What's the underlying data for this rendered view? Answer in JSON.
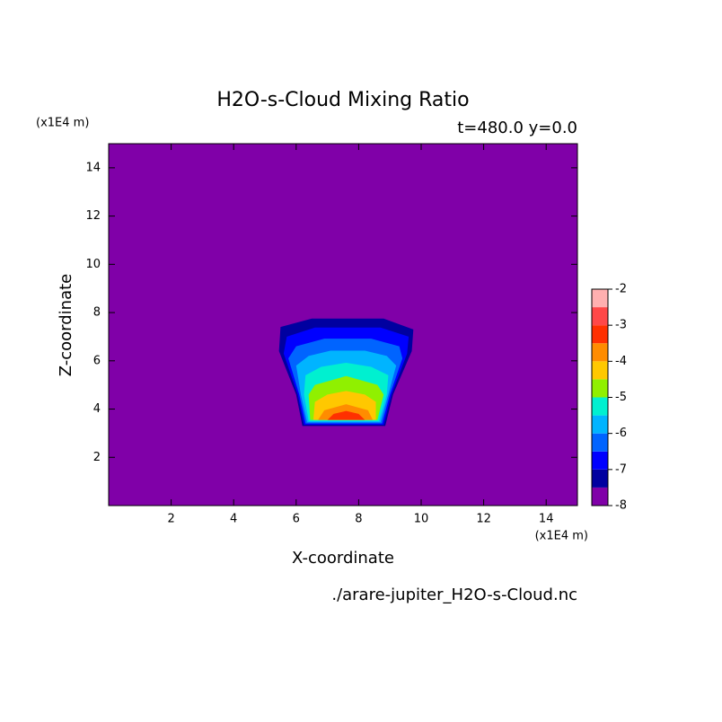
{
  "chart_data": {
    "type": "contourf",
    "title": "H2O-s-Cloud Mixing Ratio",
    "subtitle": "t=480.0 y=0.0",
    "xlabel": "X-coordinate",
    "ylabel": "Z-coordinate",
    "xunit": "(x1E4 m)",
    "yunit": "(x1E4 m)",
    "footer": "./arare-jupiter_H2O-s-Cloud.nc",
    "xlim": [
      0,
      15
    ],
    "ylim": [
      0,
      15
    ],
    "xticks": [
      2,
      4,
      6,
      8,
      10,
      12,
      14
    ],
    "yticks": [
      2,
      4,
      6,
      8,
      10,
      12,
      14
    ],
    "colorbar": {
      "levels": [
        -8,
        -7.5,
        -7,
        -6.5,
        -6,
        -5.5,
        -5,
        -4.5,
        -4,
        -3.5,
        -3,
        -2.5,
        -2
      ],
      "colors": [
        "#8000a8",
        "#0000a0",
        "#0000ff",
        "#0064ff",
        "#00b4ff",
        "#00f0d0",
        "#90f000",
        "#ffc800",
        "#ff8c00",
        "#ff3000",
        "#ff4848",
        "#ffb0b0"
      ],
      "ticks": [
        -8,
        -7,
        -6,
        -5,
        -4,
        -3,
        -2
      ]
    },
    "regions": [
      {
        "level": -7.5,
        "points": [
          [
            6.2,
            3.3
          ],
          [
            6.0,
            4.6
          ],
          [
            5.45,
            6.4
          ],
          [
            5.5,
            7.4
          ],
          [
            6.5,
            7.75
          ],
          [
            8.8,
            7.75
          ],
          [
            9.75,
            7.3
          ],
          [
            9.7,
            6.4
          ],
          [
            9.1,
            4.6
          ],
          [
            8.85,
            3.3
          ]
        ]
      },
      {
        "level": -7,
        "points": [
          [
            6.25,
            3.35
          ],
          [
            6.05,
            4.6
          ],
          [
            5.6,
            6.3
          ],
          [
            5.7,
            7.0
          ],
          [
            6.6,
            7.38
          ],
          [
            8.7,
            7.38
          ],
          [
            9.6,
            7.0
          ],
          [
            9.55,
            6.3
          ],
          [
            9.05,
            4.6
          ],
          [
            8.8,
            3.35
          ]
        ]
      },
      {
        "level": -6.5,
        "points": [
          [
            6.3,
            3.4
          ],
          [
            6.1,
            4.6
          ],
          [
            5.75,
            6.1
          ],
          [
            6.0,
            6.6
          ],
          [
            6.9,
            6.92
          ],
          [
            8.4,
            6.92
          ],
          [
            9.3,
            6.6
          ],
          [
            9.4,
            6.1
          ],
          [
            9.0,
            4.6
          ],
          [
            8.75,
            3.4
          ]
        ]
      },
      {
        "level": -6,
        "points": [
          [
            6.35,
            3.45
          ],
          [
            6.15,
            4.6
          ],
          [
            6.0,
            5.8
          ],
          [
            6.4,
            6.2
          ],
          [
            7.1,
            6.42
          ],
          [
            8.2,
            6.42
          ],
          [
            8.9,
            6.2
          ],
          [
            9.2,
            5.8
          ],
          [
            8.95,
            4.6
          ],
          [
            8.7,
            3.45
          ]
        ]
      },
      {
        "level": -5.5,
        "points": [
          [
            6.4,
            3.5
          ],
          [
            6.25,
            4.6
          ],
          [
            6.3,
            5.4
          ],
          [
            6.8,
            5.75
          ],
          [
            7.6,
            5.92
          ],
          [
            8.4,
            5.75
          ],
          [
            8.95,
            5.4
          ],
          [
            8.9,
            4.6
          ],
          [
            8.65,
            3.5
          ]
        ]
      },
      {
        "level": -5,
        "points": [
          [
            6.45,
            3.55
          ],
          [
            6.4,
            4.6
          ],
          [
            6.6,
            5.0
          ],
          [
            7.6,
            5.37
          ],
          [
            8.6,
            5.0
          ],
          [
            8.8,
            4.6
          ],
          [
            8.6,
            3.55
          ]
        ]
      },
      {
        "level": -4.5,
        "points": [
          [
            6.55,
            3.55
          ],
          [
            6.6,
            4.3
          ],
          [
            7.0,
            4.6
          ],
          [
            7.6,
            4.75
          ],
          [
            8.2,
            4.6
          ],
          [
            8.55,
            4.3
          ],
          [
            8.55,
            3.55
          ]
        ]
      },
      {
        "level": -4,
        "points": [
          [
            6.7,
            3.55
          ],
          [
            6.9,
            3.95
          ],
          [
            7.6,
            4.2
          ],
          [
            8.3,
            3.95
          ],
          [
            8.45,
            3.55
          ]
        ]
      },
      {
        "level": -3.5,
        "points": [
          [
            7.0,
            3.55
          ],
          [
            7.2,
            3.8
          ],
          [
            7.6,
            3.92
          ],
          [
            8.0,
            3.8
          ],
          [
            8.2,
            3.55
          ]
        ]
      }
    ]
  }
}
